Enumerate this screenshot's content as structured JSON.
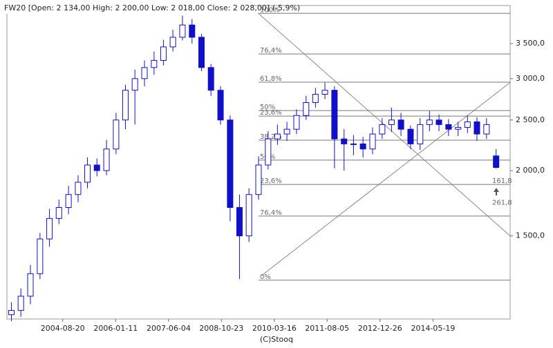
{
  "chart_data": {
    "type": "candlestick",
    "title": "FW20 [Open: 2 134,00  High: 2 200,00  Low: 2 018,00  Close: 2 028,00] (-5,9%)",
    "footer": "(C)Stooq",
    "y_scale": "log",
    "color": "#1010c8",
    "x": [
      "2003-04-15",
      "2003-07-15",
      "2003-10-15",
      "2004-01-15",
      "2004-04-15",
      "2004-07-15",
      "2004-10-15",
      "2005-01-15",
      "2005-04-15",
      "2005-07-15",
      "2005-10-15",
      "2006-01-15",
      "2006-04-15",
      "2006-07-15",
      "2006-10-15",
      "2007-01-15",
      "2007-04-15",
      "2007-07-15",
      "2007-10-15",
      "2008-01-15",
      "2008-04-15",
      "2008-07-15",
      "2008-10-15",
      "2009-01-15",
      "2009-04-15",
      "2009-07-15",
      "2009-10-15",
      "2010-01-15",
      "2010-04-15",
      "2010-07-15",
      "2010-10-15",
      "2011-01-15",
      "2011-04-15",
      "2011-07-15",
      "2011-10-15",
      "2012-01-15",
      "2012-04-15",
      "2012-07-15",
      "2012-10-15",
      "2013-01-15",
      "2013-04-15",
      "2013-07-15",
      "2013-10-15",
      "2014-01-15",
      "2014-04-15",
      "2014-07-15",
      "2014-10-15",
      "2015-01-15",
      "2015-04-15",
      "2015-07-15",
      "2015-10-15",
      "2016-01-15"
    ],
    "open": [
      1060,
      1080,
      1150,
      1270,
      1480,
      1620,
      1700,
      1800,
      1900,
      2050,
      2000,
      2200,
      2500,
      2850,
      3000,
      3150,
      3250,
      3450,
      3600,
      3800,
      3600,
      3150,
      2850,
      2500,
      1700,
      1500,
      1800,
      2050,
      2300,
      2350,
      2400,
      2550,
      2700,
      2800,
      2850,
      2300,
      2250,
      2250,
      2200,
      2350,
      2450,
      2500,
      2400,
      2250,
      2450,
      2500,
      2450,
      2400,
      2420,
      2480,
      2350,
      2134
    ],
    "high": [
      1120,
      1190,
      1320,
      1520,
      1690,
      1760,
      1870,
      1960,
      2120,
      2110,
      2290,
      2580,
      2920,
      3120,
      3250,
      3380,
      3560,
      3720,
      3960,
      3900,
      3650,
      3200,
      2900,
      2550,
      1800,
      1850,
      2130,
      2380,
      2450,
      2480,
      2620,
      2780,
      2880,
      2950,
      2900,
      2400,
      2340,
      2320,
      2420,
      2520,
      2640,
      2580,
      2440,
      2520,
      2600,
      2560,
      2510,
      2480,
      2550,
      2530,
      2520,
      2200
    ],
    "low": [
      1030,
      1050,
      1110,
      1240,
      1430,
      1580,
      1650,
      1740,
      1850,
      1950,
      1960,
      2150,
      2400,
      2450,
      2900,
      3050,
      3180,
      3380,
      3550,
      3500,
      3100,
      2780,
      2450,
      1600,
      1240,
      1460,
      1760,
      2010,
      2240,
      2280,
      2350,
      2500,
      2640,
      2740,
      2020,
      2000,
      2140,
      2120,
      2150,
      2300,
      2370,
      2330,
      2200,
      2190,
      2380,
      2380,
      2330,
      2330,
      2360,
      2280,
      2300,
      2018
    ],
    "close": [
      1080,
      1150,
      1270,
      1480,
      1620,
      1700,
      1800,
      1900,
      2050,
      2000,
      2200,
      2500,
      2850,
      3000,
      3150,
      3250,
      3450,
      3600,
      3800,
      3600,
      3150,
      2850,
      2500,
      1700,
      1500,
      1800,
      2050,
      2300,
      2350,
      2400,
      2550,
      2700,
      2800,
      2850,
      2300,
      2250,
      2250,
      2200,
      2350,
      2450,
      2500,
      2400,
      2250,
      2450,
      2500,
      2450,
      2400,
      2420,
      2480,
      2350,
      2450,
      2028
    ],
    "xlim": [
      "2003-03-03",
      "2016-05-29"
    ],
    "xticks": [
      "2004-08-20",
      "2006-01-11",
      "2007-06-04",
      "2008-10-23",
      "2010-03-16",
      "2011-08-05",
      "2012-12-26",
      "2014-05-19"
    ],
    "ylim": [
      1040,
      4140
    ],
    "yticks": [
      {
        "value": 1500,
        "label": "1 500,0"
      },
      {
        "value": 2000,
        "label": "2 000,0"
      },
      {
        "value": 2500,
        "label": "2 500,0"
      },
      {
        "value": 3000,
        "label": "3 000,0"
      },
      {
        "value": 3500,
        "label": "3 500,0"
      }
    ],
    "fib_levels": [
      {
        "value": 4000,
        "label": "100%"
      },
      {
        "value": 3344,
        "label": "76,4%"
      },
      {
        "value": 2953,
        "label": "61,8%"
      },
      {
        "value": 2606,
        "label": "50%"
      },
      {
        "value": 2543,
        "label": "23,6%"
      },
      {
        "value": 2287,
        "label": "38,2%"
      },
      {
        "value": 2095,
        "label": "50%"
      },
      {
        "value": 1882,
        "label": "23,6%"
      },
      {
        "value": 1637,
        "label": "76,4%"
      },
      {
        "value": 1234,
        "label": "0%"
      }
    ],
    "projection_labels": [
      {
        "value": 1882,
        "label": "161,8"
      },
      {
        "value": 1710,
        "label": "261,8"
      }
    ],
    "trendlines": [
      {
        "x": [
          "2009-10-13",
          "2016-05-29"
        ],
        "y": [
          4000,
          1500
        ]
      },
      {
        "x": [
          "2009-11-15",
          "2016-05-29"
        ],
        "y": [
          1260,
          2950
        ]
      }
    ]
  }
}
